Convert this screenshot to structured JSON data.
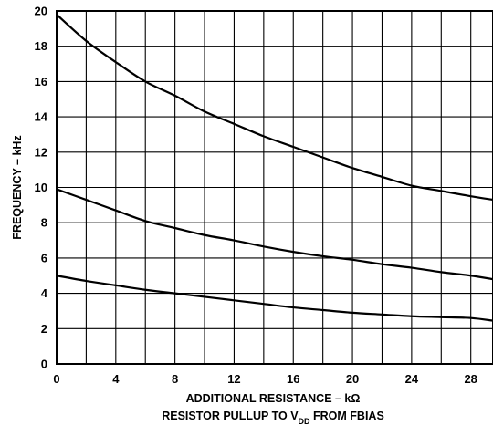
{
  "chart_data": {
    "type": "line",
    "title": "",
    "xlabel": "ADDITIONAL RESISTANCE – kΩ",
    "xlabel2": {
      "prefix": "RESISTOR PULLUP TO V",
      "subscript": "DD",
      "suffix": " FROM FBIAS"
    },
    "ylabel": "FREQUENCY – kHz",
    "xlim": [
      0,
      29.5
    ],
    "ylim": [
      0,
      20
    ],
    "xticks": [
      0,
      4,
      8,
      12,
      16,
      20,
      24,
      28
    ],
    "yticks": [
      0,
      2,
      4,
      6,
      8,
      10,
      12,
      14,
      16,
      18,
      20
    ],
    "x_grid_step": 2,
    "y_grid_step": 2,
    "grid": true,
    "legend": "none",
    "series": [
      {
        "x": [
          0,
          2,
          4,
          6,
          8,
          10,
          12,
          14,
          16,
          18,
          20,
          22,
          24,
          26,
          28,
          29.5
        ],
        "values": [
          19.8,
          18.3,
          17.1,
          16.0,
          15.2,
          14.3,
          13.6,
          12.9,
          12.3,
          11.7,
          11.1,
          10.6,
          10.1,
          9.8,
          9.5,
          9.3
        ]
      },
      {
        "x": [
          0,
          2,
          4,
          6,
          8,
          10,
          12,
          14,
          16,
          18,
          20,
          22,
          24,
          26,
          28,
          29.5
        ],
        "values": [
          9.9,
          9.3,
          8.7,
          8.1,
          7.7,
          7.3,
          7.0,
          6.65,
          6.35,
          6.1,
          5.9,
          5.65,
          5.45,
          5.2,
          5.0,
          4.8
        ]
      },
      {
        "x": [
          0,
          2,
          4,
          6,
          8,
          10,
          12,
          14,
          16,
          18,
          20,
          22,
          24,
          26,
          28,
          29.5
        ],
        "values": [
          5.0,
          4.7,
          4.45,
          4.2,
          4.0,
          3.8,
          3.6,
          3.4,
          3.2,
          3.05,
          2.9,
          2.8,
          2.7,
          2.65,
          2.6,
          2.45
        ]
      }
    ]
  }
}
